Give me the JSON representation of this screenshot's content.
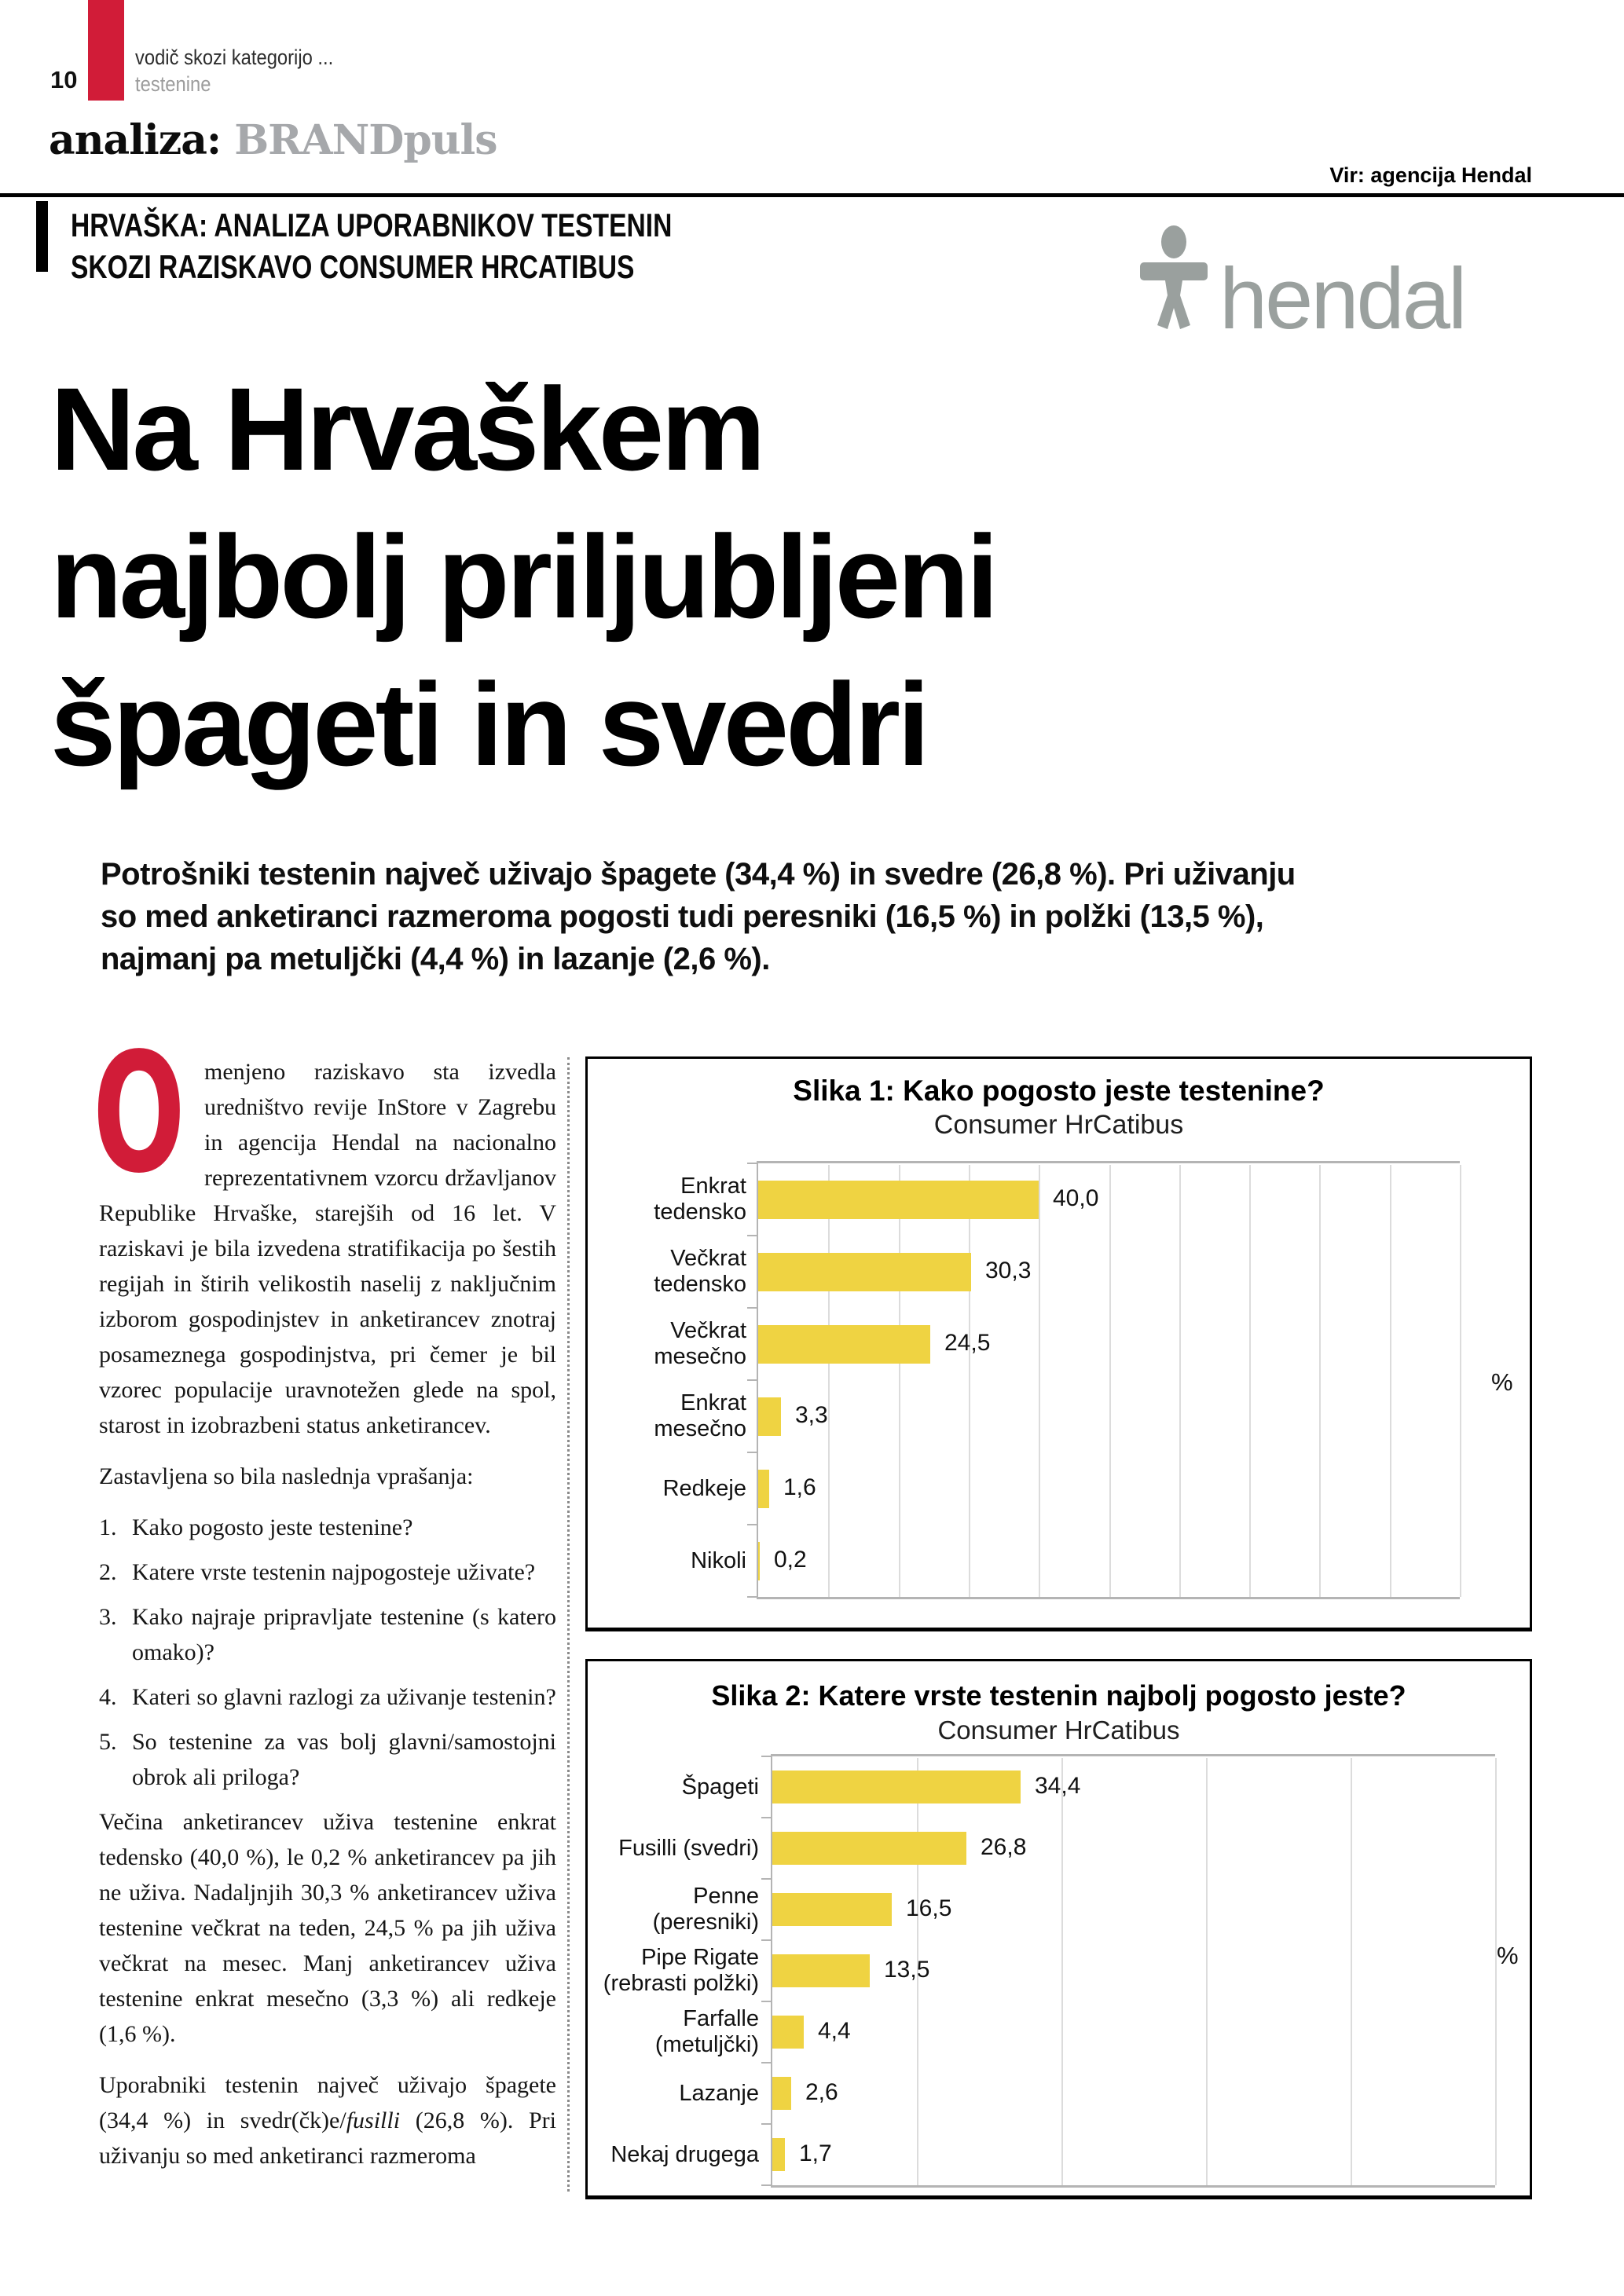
{
  "page": {
    "number": "10",
    "kicker_line1": "vodič skozi kategorijo ...",
    "kicker_line2": "testenine",
    "section_black": "analiza:",
    "section_gray": "BRANDpuls",
    "source": "Vir: agencija Hendal"
  },
  "logo": {
    "text": "hendal"
  },
  "article": {
    "eyebrow_line1": "HRVAŠKA: ANALIZA UPORABNIKOV TESTENIN",
    "eyebrow_line2": "SKOZI RAZISKAVO CONSUMER HRCATIBUS",
    "headline_lines": [
      "Na Hrvaškem",
      "najbolj priljubljeni",
      "špageti in svedri"
    ],
    "lead_lines": [
      "Potrošniki testenin največ uživajo špagete (34,4 %) in svedre (26,8 %). Pri uživanju",
      "so med anketiranci razmeroma pogosti tudi peresniki (16,5 %) in polžki (13,5 %),",
      "najmanj pa metuljčki (4,4 %) in lazanje (2,6 %)."
    ],
    "drop_cap": "O",
    "para1_rest": "menjeno raziskavo sta izvedla uredništvo revije InStore v Zagrebu in agencija Hendal na nacionalno reprezentativnem vzorcu državljanov Republike Hrvaške, starejših od 16 let. V raziskavi je bila izvedena stratifikacija po šestih regijah in štirih velikostih naselij z naključnim izborom gospodinjstev in anketirancev znotraj posameznega gospodinjstva, pri čemer je bil vzorec populacije uravnotežen glede na spol, starost in izobrazbeni status anketirancev.",
    "questions_intro": "Zastavljena so bila naslednja vprašanja:",
    "questions": [
      {
        "num": "1.",
        "text": "Kako pogosto jeste testenine?"
      },
      {
        "num": "2.",
        "text": "Katere vrste testenin najpogosteje uživate?"
      },
      {
        "num": "3.",
        "text": "Kako najraje pripravljate testenine (s katero omako)?"
      },
      {
        "num": "4.",
        "text": "Kateri so glavni razlogi za uživanje testenin?"
      },
      {
        "num": "5.",
        "text": "So testenine za vas bolj glavni/samostojni obrok ali priloga?"
      }
    ],
    "para2": "Večina anketirancev uživa testenine enkrat tedensko (40,0 %), le 0,2 % anketirancev pa jih ne uživa. Nadaljnjih 30,3 % anketirancev uživa testenine večkrat na teden, 24,5 % pa jih uživa večkrat na mesec. Manj anketirancev uživa testenine enkrat mesečno (3,3 %) ali redkeje (1,6 %).",
    "para3_pre": "Uporabniki testenin največ uživajo špagete (34,4 %) in svedr(čk)e/",
    "para3_italic": "fusilli",
    "para3_post": " (26,8 %). Pri uživanju so med anketiranci razmeroma"
  },
  "chart_data": [
    {
      "type": "bar",
      "orientation": "horizontal",
      "title": "Slika 1: Kako pogosto jeste testenine?",
      "subtitle": "Consumer HrCatibus",
      "categories": [
        "Enkrat tedensko",
        "Večkrat tedensko",
        "Večkrat mesečno",
        "Enkrat mesečno",
        "Redkeje",
        "Nikoli"
      ],
      "values": [
        40.0,
        30.3,
        24.5,
        3.3,
        1.6,
        0.2
      ],
      "value_labels": [
        "40,0",
        "30,3",
        "24,5",
        "3,3",
        "1,6",
        "0,2"
      ],
      "unit_label": "%",
      "xlim": [
        0,
        100
      ],
      "grid_step": 10,
      "grid": true,
      "legend": false
    },
    {
      "type": "bar",
      "orientation": "horizontal",
      "title": "Slika 2: Katere vrste testenin najbolj pogosto jeste?",
      "subtitle": "Consumer HrCatibus",
      "categories": [
        "Špageti",
        "Fusilli (svedri)",
        "Penne (peresniki)",
        "Pipe Rigate (rebrasti polžki)",
        "Farfalle (metuljčki)",
        "Lazanje",
        "Nekaj drugega"
      ],
      "values": [
        34.4,
        26.8,
        16.5,
        13.5,
        4.4,
        2.6,
        1.7
      ],
      "value_labels": [
        "34,4",
        "26,8",
        "16,5",
        "13,5",
        "4,4",
        "2,6",
        "1,7"
      ],
      "unit_label": "%",
      "xlim": [
        0,
        100
      ],
      "grid_step": 20,
      "grid": true,
      "legend": false
    }
  ],
  "colors": {
    "red": "#d11c38",
    "yellow": "#efd342",
    "logo_gray": "#9aa09e",
    "brand_gray": "#a6a8ab",
    "gridline": "#dcdcdc",
    "axis": "#b4b4b4"
  }
}
